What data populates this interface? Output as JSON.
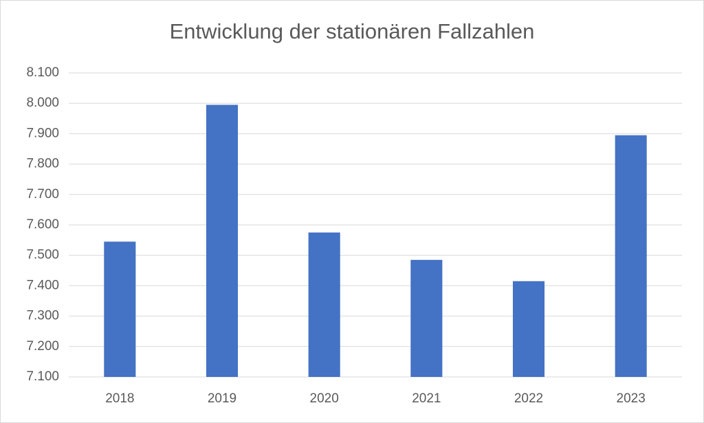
{
  "chart_data": {
    "type": "bar",
    "title": "Entwicklung der stationären Fallzahlen",
    "categories": [
      "2018",
      "2019",
      "2020",
      "2021",
      "2022",
      "2023"
    ],
    "values": [
      7545,
      7995,
      7575,
      7485,
      7415,
      7895
    ],
    "color": "#4472c4",
    "ylim": [
      7100,
      8100
    ],
    "yticks": [
      {
        "value": 7100,
        "label": "7.100"
      },
      {
        "value": 7200,
        "label": "7.200"
      },
      {
        "value": 7300,
        "label": "7.300"
      },
      {
        "value": 7400,
        "label": "7.400"
      },
      {
        "value": 7500,
        "label": "7.500"
      },
      {
        "value": 7600,
        "label": "7.600"
      },
      {
        "value": 7700,
        "label": "7.700"
      },
      {
        "value": 7800,
        "label": "7.800"
      },
      {
        "value": 7900,
        "label": "7.900"
      },
      {
        "value": 8000,
        "label": "8.000"
      },
      {
        "value": 8100,
        "label": "8.100"
      }
    ],
    "grid": true
  }
}
